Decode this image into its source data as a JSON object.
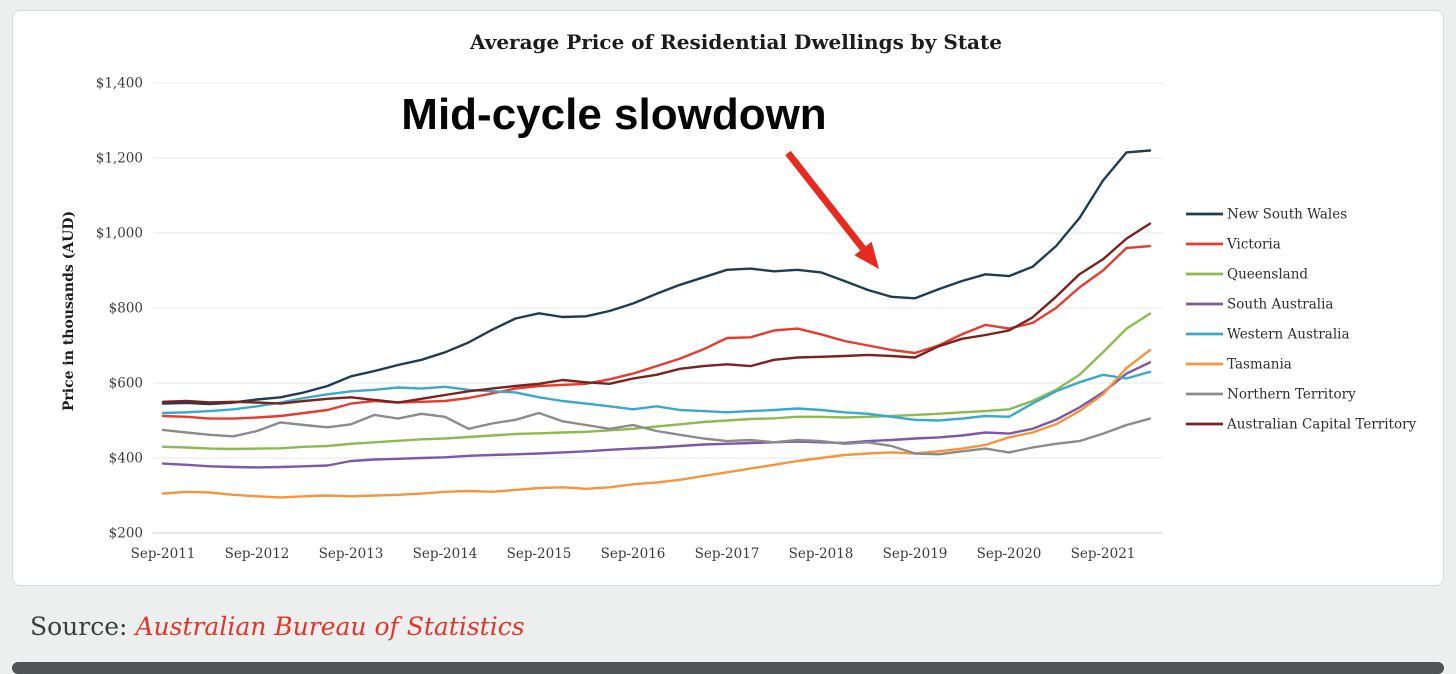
{
  "chart_data": {
    "type": "line",
    "title": "Average Price of Residential Dwellings by State",
    "ylabel": "Price in thousands (AUD)",
    "x_range": "Sep-2011 to Mar-2022, quarterly",
    "x_tick_labels": [
      "Sep-2011",
      "Sep-2012",
      "Sep-2013",
      "Sep-2014",
      "Sep-2015",
      "Sep-2016",
      "Sep-2017",
      "Sep-2018",
      "Sep-2019",
      "Sep-2020",
      "Sep-2021"
    ],
    "ylim": [
      200,
      1400
    ],
    "y_ticks": [
      200,
      400,
      600,
      800,
      1000,
      1200,
      1400
    ],
    "y_tick_labels": [
      "$200",
      "$400",
      "$600",
      "$800",
      "$1,000",
      "$1,200",
      "$1,400"
    ],
    "grid": "horizontal",
    "legend_position": "right",
    "annotation": {
      "text": "Mid-cycle slowdown",
      "arrow_color": "#e8291d"
    },
    "series": [
      {
        "name": "New South Wales",
        "color": "#1d3d54",
        "values": [
          545,
          547,
          544,
          548,
          556,
          562,
          575,
          592,
          618,
          632,
          648,
          662,
          682,
          708,
          742,
          772,
          786,
          776,
          778,
          792,
          812,
          838,
          862,
          882,
          902,
          905,
          898,
          902,
          895,
          872,
          848,
          830,
          826,
          850,
          872,
          890,
          885,
          910,
          965,
          1040,
          1140,
          1215,
          1220
        ]
      },
      {
        "name": "Victoria",
        "color": "#e63c2f",
        "values": [
          512,
          510,
          505,
          505,
          508,
          512,
          520,
          528,
          545,
          552,
          548,
          550,
          552,
          560,
          572,
          585,
          592,
          595,
          598,
          610,
          625,
          645,
          665,
          690,
          720,
          722,
          740,
          745,
          730,
          712,
          700,
          688,
          680,
          700,
          730,
          755,
          745,
          760,
          800,
          855,
          900,
          960,
          965
        ]
      },
      {
        "name": "Queensland",
        "color": "#8cba51",
        "values": [
          430,
          428,
          425,
          424,
          425,
          426,
          430,
          432,
          438,
          442,
          446,
          450,
          452,
          456,
          460,
          464,
          466,
          468,
          470,
          474,
          478,
          484,
          490,
          496,
          500,
          504,
          506,
          510,
          510,
          508,
          510,
          512,
          515,
          518,
          522,
          525,
          530,
          552,
          582,
          622,
          682,
          745,
          785
        ]
      },
      {
        "name": "South Australia",
        "color": "#7c58a5",
        "values": [
          385,
          382,
          378,
          376,
          375,
          376,
          378,
          380,
          392,
          396,
          398,
          400,
          402,
          406,
          408,
          410,
          412,
          415,
          418,
          422,
          425,
          428,
          432,
          436,
          438,
          440,
          442,
          444,
          442,
          440,
          445,
          448,
          452,
          455,
          460,
          468,
          465,
          478,
          502,
          535,
          575,
          625,
          655
        ]
      },
      {
        "name": "Western Australia",
        "color": "#3aa9c9",
        "values": [
          520,
          522,
          525,
          530,
          538,
          548,
          560,
          570,
          578,
          582,
          588,
          585,
          590,
          582,
          578,
          575,
          562,
          552,
          545,
          538,
          530,
          538,
          528,
          525,
          522,
          525,
          528,
          532,
          528,
          522,
          518,
          510,
          502,
          500,
          505,
          512,
          510,
          545,
          578,
          602,
          622,
          612,
          630
        ]
      },
      {
        "name": "Tasmania",
        "color": "#f5953b",
        "values": [
          305,
          310,
          308,
          302,
          298,
          295,
          298,
          300,
          298,
          300,
          302,
          305,
          310,
          312,
          310,
          315,
          320,
          322,
          318,
          322,
          330,
          335,
          342,
          352,
          362,
          372,
          382,
          392,
          400,
          408,
          412,
          415,
          412,
          418,
          425,
          435,
          455,
          468,
          490,
          525,
          570,
          640,
          688
        ]
      },
      {
        "name": "Northern Territory",
        "color": "#8b8b8b",
        "values": [
          475,
          468,
          462,
          458,
          472,
          495,
          488,
          482,
          490,
          515,
          505,
          518,
          510,
          478,
          492,
          502,
          520,
          498,
          488,
          478,
          488,
          472,
          462,
          452,
          445,
          448,
          442,
          448,
          445,
          438,
          442,
          432,
          412,
          410,
          418,
          425,
          415,
          428,
          438,
          445,
          465,
          488,
          505
        ]
      },
      {
        "name": "Australian Capital Territory",
        "color": "#7a231e",
        "values": [
          550,
          552,
          548,
          550,
          548,
          545,
          552,
          558,
          562,
          555,
          548,
          558,
          568,
          578,
          585,
          592,
          598,
          608,
          602,
          598,
          612,
          622,
          638,
          645,
          650,
          645,
          662,
          668,
          670,
          672,
          675,
          672,
          668,
          698,
          718,
          728,
          740,
          775,
          830,
          890,
          930,
          985,
          1025
        ]
      }
    ]
  },
  "source": {
    "prefix": "Source:",
    "text": "Australian Bureau of Statistics"
  }
}
